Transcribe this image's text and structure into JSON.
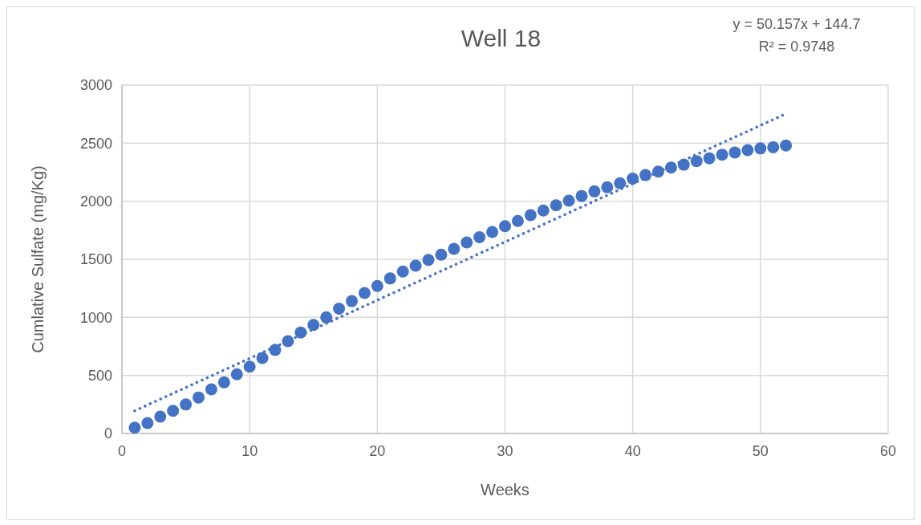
{
  "chart_data": {
    "type": "scatter",
    "title": "Well 18",
    "xlabel": "Weeks",
    "ylabel": "Cumlative Sulfate (mg/Kg)",
    "xlim": [
      0,
      60
    ],
    "xticks": [
      0,
      10,
      20,
      30,
      40,
      50,
      60
    ],
    "ylim": [
      0,
      3000
    ],
    "yticks": [
      0,
      500,
      1000,
      1500,
      2000,
      2500,
      3000
    ],
    "grid": true,
    "marker": "circle",
    "annotations": [
      "y = 50.157x + 144.7",
      "R² = 0.9748"
    ],
    "series": [
      {
        "color": "#4472c4",
        "x": [
          1,
          2,
          3,
          4,
          5,
          6,
          7,
          8,
          9,
          10,
          11,
          12,
          13,
          14,
          15,
          16,
          17,
          18,
          19,
          20,
          21,
          22,
          23,
          24,
          25,
          26,
          27,
          28,
          29,
          30,
          31,
          32,
          33,
          34,
          35,
          36,
          37,
          38,
          39,
          40,
          41,
          42,
          43,
          44,
          45,
          46,
          47,
          48,
          49,
          50,
          51,
          52
        ],
        "values": [
          50,
          90,
          145,
          195,
          250,
          310,
          380,
          440,
          510,
          575,
          650,
          720,
          795,
          870,
          935,
          1000,
          1075,
          1140,
          1210,
          1270,
          1335,
          1395,
          1445,
          1495,
          1540,
          1590,
          1645,
          1690,
          1735,
          1785,
          1830,
          1880,
          1920,
          1965,
          2005,
          2045,
          2085,
          2120,
          2155,
          2195,
          2225,
          2255,
          2290,
          2315,
          2345,
          2370,
          2400,
          2420,
          2440,
          2455,
          2465,
          2480
        ]
      },
      {
        "type": "line",
        "color": "#4472c4",
        "line_style": "dotted",
        "marker": "none",
        "x": [
          1,
          52
        ],
        "values": [
          195,
          2753
        ]
      }
    ]
  }
}
